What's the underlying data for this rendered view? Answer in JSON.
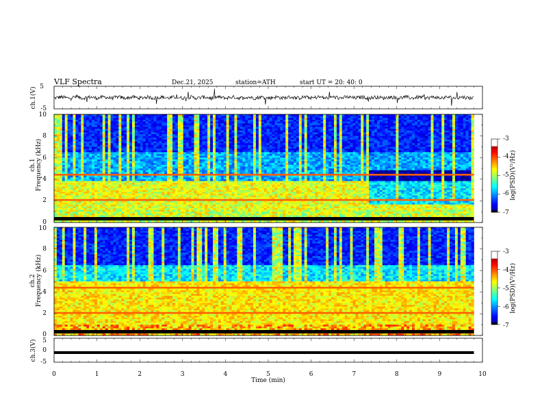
{
  "header": {
    "title": "VLF  Spectra",
    "date": "Dec.21, 2025",
    "station": "station=ATH",
    "start_ut": "start  UT  =   20: 40: 0"
  },
  "chart_data": [
    {
      "type": "line",
      "name": "ch1-waveform",
      "ylabel": "ch.1(V)",
      "ylim": [
        -5,
        5
      ],
      "yticks": [
        "5",
        "-5"
      ],
      "x": [
        0,
        1,
        2,
        3,
        4,
        5,
        6,
        7,
        8,
        9,
        9.8
      ],
      "values": [
        0,
        0,
        0,
        0,
        0,
        0,
        0,
        0,
        0,
        0,
        0
      ],
      "grid": false
    },
    {
      "type": "heatmap",
      "name": "ch1-spectrogram",
      "ylabel": "ch.1\nFrequency (kHz)",
      "ylim": [
        0,
        10
      ],
      "yticks": [
        "0",
        "2",
        "4",
        "6",
        "8",
        "10"
      ],
      "xlim": [
        0,
        10
      ],
      "colorbar": {
        "label": "log(PSD)(V²/Hz)",
        "ticks": [
          "-3",
          "-4",
          "-5",
          "-6",
          "-7"
        ],
        "range": [
          -7,
          -3
        ]
      }
    },
    {
      "type": "heatmap",
      "name": "ch2-spectrogram",
      "ylabel": "ch.2\nFrequency (kHz)",
      "ylim": [
        0,
        10
      ],
      "yticks": [
        "0",
        "2",
        "4",
        "6",
        "8",
        "10"
      ],
      "xlim": [
        0,
        10
      ],
      "colorbar": {
        "label": "log(PSD)(V²/Hz)",
        "ticks": [
          "-3",
          "-4",
          "-5",
          "-6",
          "-7"
        ],
        "range": [
          -7,
          -3
        ]
      }
    },
    {
      "type": "line",
      "name": "ch3-waveform",
      "ylabel": "ch.3(V)",
      "ylim": [
        -5,
        5
      ],
      "yticks": [
        "5",
        "0",
        "-5"
      ],
      "x": [
        0,
        9.8
      ],
      "values": [
        -1,
        -1
      ],
      "grid": false
    }
  ],
  "xaxis": {
    "label": "Time  (min)",
    "xlim": [
      0,
      10
    ],
    "ticks": [
      "0",
      "1",
      "2",
      "3",
      "4",
      "5",
      "6",
      "7",
      "8",
      "9",
      "10"
    ]
  }
}
